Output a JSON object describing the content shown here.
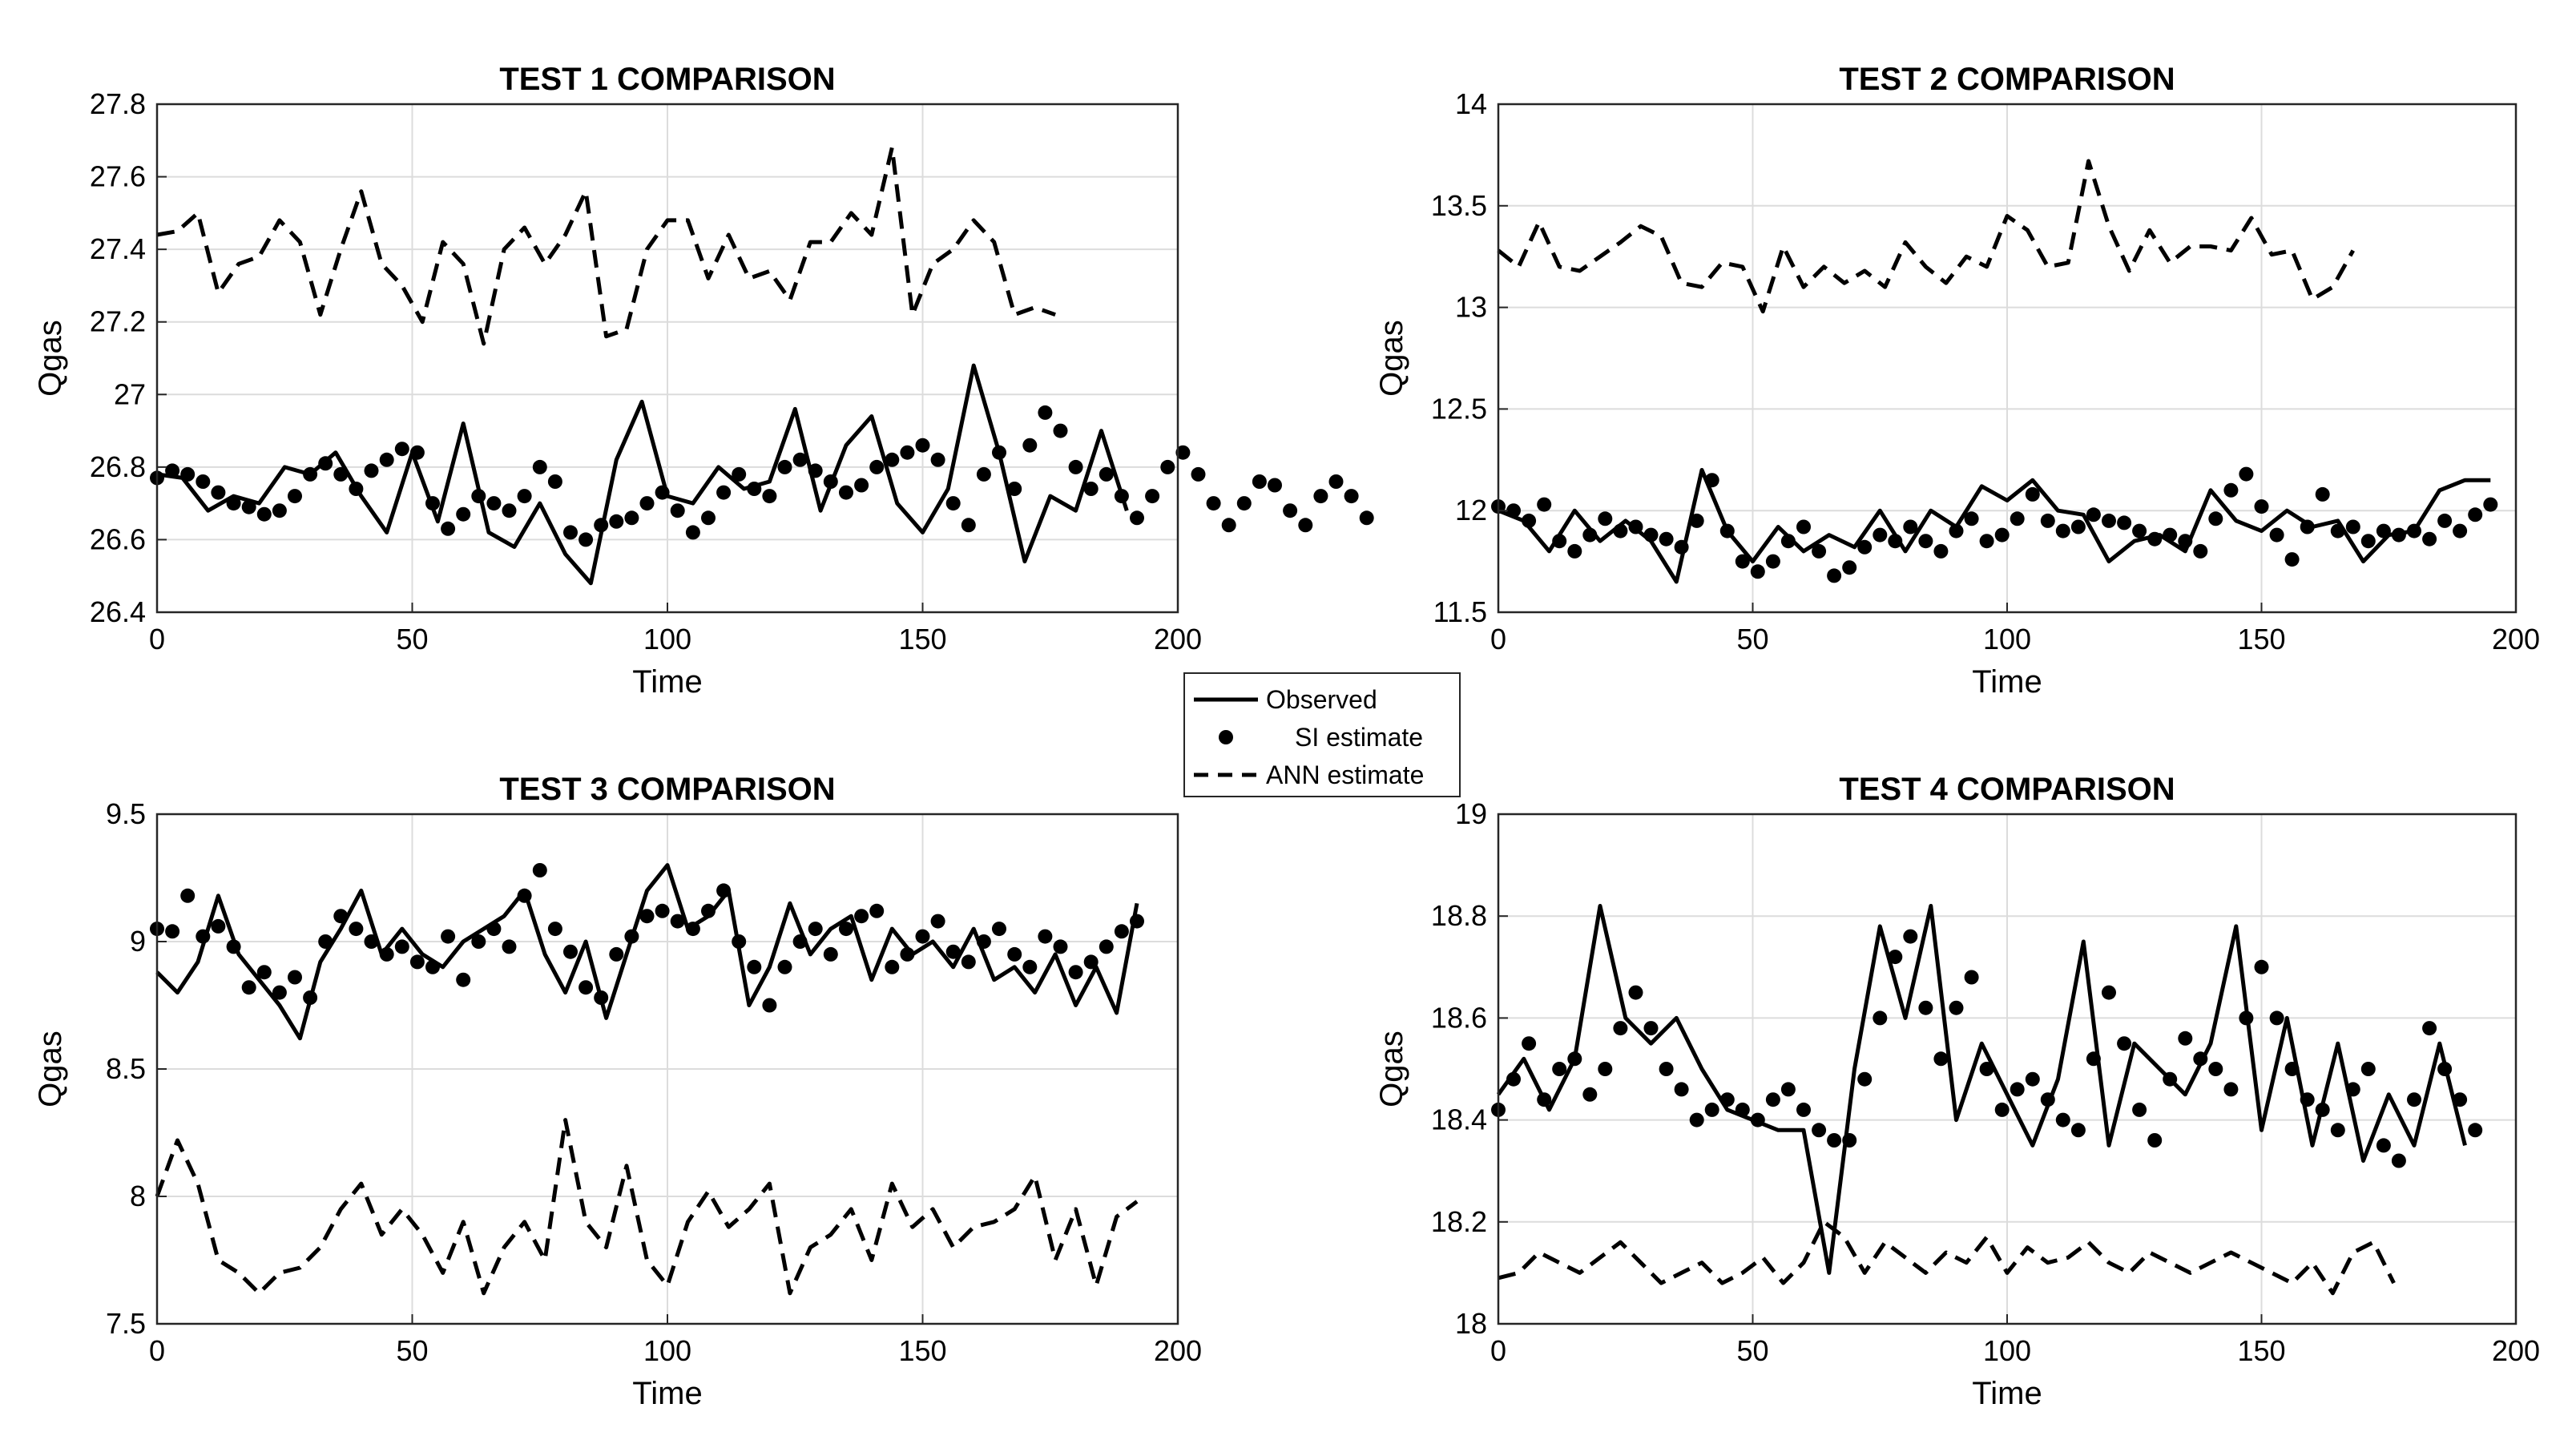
{
  "colors": {
    "line": "#000000",
    "grid": "#dcdcdc",
    "axis": "#262626",
    "background": "#ffffff"
  },
  "legend": {
    "placement": "center",
    "entries": [
      {
        "label": "Observed",
        "style": "solid"
      },
      {
        "label": "SI estimate",
        "style": "dots"
      },
      {
        "label": "ANN estimate",
        "style": "dashed"
      }
    ]
  },
  "chart_data": [
    {
      "type": "line",
      "title": "TEST 1 COMPARISON",
      "xlabel": "Time",
      "ylabel": "Qgas",
      "xlim": [
        0,
        200
      ],
      "ylim": [
        26.4,
        27.8
      ],
      "xticks": [
        0,
        50,
        100,
        150,
        200
      ],
      "yticks": [
        26.4,
        26.6,
        26.8,
        27,
        27.2,
        27.4,
        27.6,
        27.8
      ],
      "ytick_labels": [
        "26.4",
        "26.6",
        "26.8",
        "27",
        "27.2",
        "27.4",
        "27.6",
        "27.8"
      ],
      "grid": true,
      "series": [
        {
          "name": "Observed",
          "style": "solid",
          "x_start": 0,
          "x_step": 5,
          "values": [
            26.78,
            26.77,
            26.68,
            26.72,
            26.7,
            26.8,
            26.78,
            26.84,
            26.72,
            26.62,
            26.84,
            26.65,
            26.92,
            26.62,
            26.58,
            26.7,
            26.56,
            26.48,
            26.82,
            26.98,
            26.72,
            26.7,
            26.8,
            26.74,
            26.76,
            26.96,
            26.68,
            26.86,
            26.94,
            26.7,
            26.62,
            26.74,
            27.08,
            26.84,
            26.54,
            26.72,
            26.68,
            26.9,
            26.68
          ]
        },
        {
          "name": "SI estimate",
          "style": "dots",
          "x_start": 0,
          "x_step": 3,
          "values": [
            26.77,
            26.79,
            26.78,
            26.76,
            26.73,
            26.7,
            26.69,
            26.67,
            26.68,
            26.72,
            26.78,
            26.81,
            26.78,
            26.74,
            26.79,
            26.82,
            26.85,
            26.84,
            26.7,
            26.63,
            26.67,
            26.72,
            26.7,
            26.68,
            26.72,
            26.8,
            26.76,
            26.62,
            26.6,
            26.64,
            26.65,
            26.66,
            26.7,
            26.73,
            26.68,
            26.62,
            26.66,
            26.73,
            26.78,
            26.74,
            26.72,
            26.8,
            26.82,
            26.79,
            26.76,
            26.73,
            26.75,
            26.8,
            26.82,
            26.84,
            26.86,
            26.82,
            26.7,
            26.64,
            26.78,
            26.84,
            26.74,
            26.86,
            26.95,
            26.9,
            26.8,
            26.74,
            26.78,
            26.72,
            26.66,
            26.72,
            26.8,
            26.84,
            26.78,
            26.7,
            26.64,
            26.7,
            26.76,
            26.75,
            26.68,
            26.64,
            26.72,
            26.76,
            26.72,
            26.66
          ]
        },
        {
          "name": "ANN estimate",
          "style": "dashed",
          "x_start": 0,
          "x_step": 4,
          "values": [
            27.44,
            27.45,
            27.5,
            27.28,
            27.36,
            27.38,
            27.48,
            27.42,
            27.22,
            27.4,
            27.56,
            27.36,
            27.3,
            27.2,
            27.42,
            27.36,
            27.14,
            27.4,
            27.46,
            27.36,
            27.44,
            27.56,
            27.16,
            27.18,
            27.4,
            27.48,
            27.48,
            27.32,
            27.44,
            27.32,
            27.34,
            27.26,
            27.42,
            27.42,
            27.5,
            27.44,
            27.68,
            27.22,
            27.36,
            27.4,
            27.48,
            27.42,
            27.22,
            27.24,
            27.22
          ]
        }
      ]
    },
    {
      "type": "line",
      "title": "TEST 2 COMPARISON",
      "xlabel": "Time",
      "ylabel": "Qgas",
      "xlim": [
        0,
        200
      ],
      "ylim": [
        11.5,
        14
      ],
      "xticks": [
        0,
        50,
        100,
        150,
        200
      ],
      "yticks": [
        11.5,
        12,
        12.5,
        13,
        13.5,
        14
      ],
      "ytick_labels": [
        "11.5",
        "12",
        "12.5",
        "13",
        "13.5",
        "14"
      ],
      "grid": true,
      "series": [
        {
          "name": "Observed",
          "style": "solid",
          "x_start": 0,
          "x_step": 5,
          "values": [
            12.0,
            11.95,
            11.8,
            12.0,
            11.85,
            11.95,
            11.85,
            11.65,
            12.2,
            11.9,
            11.75,
            11.92,
            11.8,
            11.88,
            11.82,
            12.0,
            11.8,
            12.0,
            11.92,
            12.12,
            12.05,
            12.15,
            12.0,
            11.98,
            11.75,
            11.85,
            11.88,
            11.8,
            12.1,
            11.95,
            11.9,
            12.0,
            11.92,
            11.95,
            11.75,
            11.88,
            11.9,
            12.1,
            12.15,
            12.15
          ]
        },
        {
          "name": "SI estimate",
          "style": "dots",
          "x_start": 0,
          "x_step": 3,
          "values": [
            12.02,
            12.0,
            11.95,
            12.03,
            11.85,
            11.8,
            11.88,
            11.96,
            11.9,
            11.92,
            11.88,
            11.86,
            11.82,
            11.95,
            12.15,
            11.9,
            11.75,
            11.7,
            11.75,
            11.85,
            11.92,
            11.8,
            11.68,
            11.72,
            11.82,
            11.88,
            11.85,
            11.92,
            11.85,
            11.8,
            11.9,
            11.96,
            11.85,
            11.88,
            11.96,
            12.08,
            11.95,
            11.9,
            11.92,
            11.98,
            11.95,
            11.94,
            11.9,
            11.86,
            11.88,
            11.85,
            11.8,
            11.96,
            12.1,
            12.18,
            12.02,
            11.88,
            11.76,
            11.92,
            12.08,
            11.9,
            11.92,
            11.85,
            11.9,
            11.88,
            11.9,
            11.86,
            11.95,
            11.9,
            11.98,
            12.03
          ]
        },
        {
          "name": "ANN estimate",
          "style": "dashed",
          "x_start": 0,
          "x_step": 4,
          "values": [
            13.28,
            13.2,
            13.42,
            13.2,
            13.18,
            13.25,
            13.32,
            13.4,
            13.35,
            13.12,
            13.1,
            13.22,
            13.2,
            12.98,
            13.3,
            13.1,
            13.2,
            13.12,
            13.18,
            13.1,
            13.32,
            13.2,
            13.12,
            13.25,
            13.2,
            13.45,
            13.38,
            13.2,
            13.22,
            13.72,
            13.4,
            13.18,
            13.38,
            13.22,
            13.3,
            13.3,
            13.28,
            13.44,
            13.26,
            13.28,
            13.04,
            13.1,
            13.28
          ]
        }
      ]
    },
    {
      "type": "line",
      "title": "TEST 3 COMPARISON",
      "xlabel": "Time",
      "ylabel": "Qgas",
      "xlim": [
        0,
        200
      ],
      "ylim": [
        7.5,
        9.5
      ],
      "xticks": [
        0,
        50,
        100,
        150,
        200
      ],
      "yticks": [
        7.5,
        8,
        8.5,
        9,
        9.5
      ],
      "ytick_labels": [
        "7.5",
        "8",
        "8.5",
        "9",
        "9.5"
      ],
      "grid": true,
      "series": [
        {
          "name": "Observed",
          "style": "solid",
          "x_start": 0,
          "x_step": 4,
          "values": [
            8.88,
            8.8,
            8.92,
            9.18,
            8.95,
            8.85,
            8.75,
            8.62,
            8.92,
            9.05,
            9.2,
            8.95,
            9.05,
            8.95,
            8.9,
            9.0,
            9.05,
            9.1,
            9.2,
            8.95,
            8.8,
            9.0,
            8.7,
            8.95,
            9.2,
            9.3,
            9.05,
            9.1,
            9.2,
            8.75,
            8.9,
            9.15,
            8.95,
            9.05,
            9.1,
            8.85,
            9.05,
            8.95,
            9.0,
            8.9,
            9.05,
            8.85,
            8.9,
            8.8,
            8.95,
            8.75,
            8.9,
            8.72,
            9.15
          ]
        },
        {
          "name": "SI estimate",
          "style": "dots",
          "x_start": 0,
          "x_step": 3,
          "values": [
            9.05,
            9.04,
            9.18,
            9.02,
            9.06,
            8.98,
            8.82,
            8.88,
            8.8,
            8.86,
            8.78,
            9.0,
            9.1,
            9.05,
            9.0,
            8.95,
            8.98,
            8.92,
            8.9,
            9.02,
            8.85,
            9.0,
            9.05,
            8.98,
            9.18,
            9.28,
            9.05,
            8.96,
            8.82,
            8.78,
            8.95,
            9.02,
            9.1,
            9.12,
            9.08,
            9.05,
            9.12,
            9.2,
            9.0,
            8.9,
            8.75,
            8.9,
            9.0,
            9.05,
            8.95,
            9.05,
            9.1,
            9.12,
            8.9,
            8.95,
            9.02,
            9.08,
            8.96,
            8.92,
            9.0,
            9.05,
            8.95,
            8.9,
            9.02,
            8.98,
            8.88,
            8.92,
            8.98,
            9.04,
            9.08
          ]
        },
        {
          "name": "ANN estimate",
          "style": "dashed",
          "x_start": 0,
          "x_step": 4,
          "values": [
            8.0,
            8.22,
            8.05,
            7.75,
            7.7,
            7.62,
            7.7,
            7.72,
            7.8,
            7.95,
            8.05,
            7.85,
            7.95,
            7.85,
            7.7,
            7.9,
            7.62,
            7.8,
            7.9,
            7.75,
            8.3,
            7.9,
            7.8,
            8.12,
            7.75,
            7.65,
            7.9,
            8.02,
            7.88,
            7.95,
            8.05,
            7.62,
            7.8,
            7.85,
            7.95,
            7.75,
            8.05,
            7.88,
            7.95,
            7.8,
            7.88,
            7.9,
            7.95,
            8.08,
            7.75,
            7.95,
            7.65,
            7.92,
            7.98
          ]
        }
      ]
    },
    {
      "type": "line",
      "title": "TEST 4 COMPARISON",
      "xlabel": "Time",
      "ylabel": "Qgas",
      "xlim": [
        0,
        200
      ],
      "ylim": [
        18,
        19
      ],
      "xticks": [
        0,
        50,
        100,
        150,
        200
      ],
      "yticks": [
        18,
        18.2,
        18.4,
        18.6,
        18.8,
        19
      ],
      "ytick_labels": [
        "18",
        "18.2",
        "18.4",
        "18.6",
        "18.8",
        "19"
      ],
      "grid": true,
      "series": [
        {
          "name": "Observed",
          "style": "solid",
          "x_start": 0,
          "x_step": 5,
          "values": [
            18.45,
            18.52,
            18.42,
            18.52,
            18.82,
            18.6,
            18.55,
            18.6,
            18.5,
            18.42,
            18.4,
            18.38,
            18.38,
            18.1,
            18.5,
            18.78,
            18.6,
            18.82,
            18.4,
            18.55,
            18.45,
            18.35,
            18.48,
            18.75,
            18.35,
            18.55,
            18.5,
            18.45,
            18.55,
            18.78,
            18.38,
            18.6,
            18.35,
            18.55,
            18.32,
            18.45,
            18.35,
            18.55,
            18.35
          ]
        },
        {
          "name": "SI estimate",
          "style": "dots",
          "x_start": 0,
          "x_step": 3,
          "values": [
            18.42,
            18.48,
            18.55,
            18.44,
            18.5,
            18.52,
            18.45,
            18.5,
            18.58,
            18.65,
            18.58,
            18.5,
            18.46,
            18.4,
            18.42,
            18.44,
            18.42,
            18.4,
            18.44,
            18.46,
            18.42,
            18.38,
            18.36,
            18.36,
            18.48,
            18.6,
            18.72,
            18.76,
            18.62,
            18.52,
            18.62,
            18.68,
            18.5,
            18.42,
            18.46,
            18.48,
            18.44,
            18.4,
            18.38,
            18.52,
            18.65,
            18.55,
            18.42,
            18.36,
            18.48,
            18.56,
            18.52,
            18.5,
            18.46,
            18.6,
            18.7,
            18.6,
            18.5,
            18.44,
            18.42,
            18.38,
            18.46,
            18.5,
            18.35,
            18.32,
            18.44,
            18.58,
            18.5,
            18.44,
            18.38
          ]
        },
        {
          "name": "ANN estimate",
          "style": "dashed",
          "x_start": 0,
          "x_step": 4,
          "values": [
            18.09,
            18.1,
            18.14,
            18.12,
            18.1,
            18.13,
            18.16,
            18.12,
            18.08,
            18.1,
            18.12,
            18.08,
            18.1,
            18.13,
            18.08,
            18.12,
            18.2,
            18.17,
            18.1,
            18.16,
            18.13,
            18.1,
            18.14,
            18.12,
            18.17,
            18.1,
            18.15,
            18.12,
            18.13,
            18.16,
            18.12,
            18.1,
            18.14,
            18.12,
            18.1,
            18.12,
            18.14,
            18.12,
            18.1,
            18.08,
            18.12,
            18.06,
            18.14,
            18.16,
            18.08
          ]
        }
      ]
    }
  ]
}
